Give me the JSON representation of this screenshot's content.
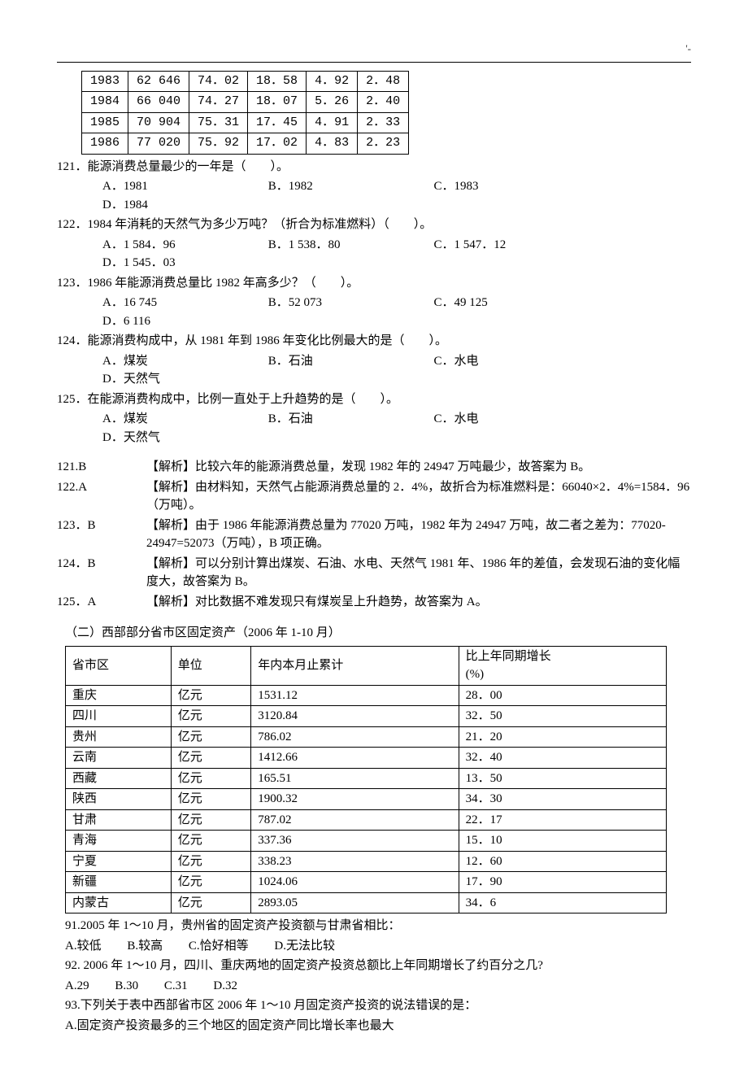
{
  "top_mark": "'-",
  "energy_table": {
    "rows": [
      [
        "1983",
        "62 646",
        "74．02",
        "18．58",
        "4．92",
        "2．48"
      ],
      [
        "1984",
        "66 040",
        "74．27",
        "18．07",
        "5．26",
        "2．40"
      ],
      [
        "1985",
        "70 904",
        "75．31",
        "17．45",
        "4．91",
        "2．33"
      ],
      [
        "1986",
        "77 020",
        "75．92",
        "17．02",
        "4．83",
        "2．23"
      ]
    ]
  },
  "q121": {
    "text": "121．能源消费总量最少的一年是（　　）。",
    "a": "A．1981",
    "b": "B．1982",
    "c": "C．1983",
    "d": "D．1984"
  },
  "q122": {
    "text": "122．1984 年消耗的天然气为多少万吨？（折合为标准燃料）（　　）。",
    "a": "A．1 584．96",
    "b": "B．1 538．80",
    "c": "C．1 547．12",
    "d": "D．1 545．03"
  },
  "q123": {
    "text": "123．1986 年能源消费总量比 1982 年高多少？（　　）。",
    "a": "A．16 745",
    "b": "B．52 073",
    "c": "C．49 125",
    "d": "D．6 116"
  },
  "q124": {
    "text": "124．能源消费构成中，从 1981 年到 1986 年变化比例最大的是（　　）。",
    "a": "A．煤炭",
    "b": "B．石油",
    "c": "C．水电",
    "d": "D．天然气"
  },
  "q125": {
    "text": "125．在能源消费构成中，比例一直处于上升趋势的是（　　）。",
    "a": "A．煤炭",
    "b": "B．石油",
    "c": "C．水电",
    "d": "D．天然气"
  },
  "expl": {
    "e121": {
      "key": "121.B",
      "text": "【解析】比较六年的能源消费总量，发现 1982 年的 24947 万吨最少，故答案为 B。"
    },
    "e122": {
      "key": "122.A",
      "text": "【解析】由材料知，天然气占能源消费总量的 2．4%，故折合为标准燃料是：66040×2．4%=1584．96（万吨）。"
    },
    "e123": {
      "key": "123．B",
      "text": "【解析】由于 1986 年能源消费总量为 77020 万吨，1982 年为 24947 万吨，故二者之差为：77020-24947=52073（万吨），B 项正确。"
    },
    "e124": {
      "key": "124．B",
      "text": "【解析】可以分别计算出煤炭、石油、水电、天然气 1981 年、1986 年的差值，会发现石油的变化幅度大，故答案为 B。"
    },
    "e125": {
      "key": "125．A",
      "text": "【解析】对比数据不难发现只有煤炭呈上升趋势，故答案为 A。"
    }
  },
  "section2_title": "（二）西部部分省市区固定资产（2006 年 1-10 月）",
  "asset_table": {
    "headers": [
      "省市区",
      "单位",
      "年内本月止累计",
      "比上年同期增长(%)"
    ],
    "rows": [
      [
        "重庆",
        "亿元",
        "1531.12",
        "28．00"
      ],
      [
        "四川",
        "亿元",
        "3120.84",
        "32．50"
      ],
      [
        "贵州",
        "亿元",
        "786.02",
        "21．20"
      ],
      [
        "云南",
        "亿元",
        "1412.66",
        "32．40"
      ],
      [
        "西藏",
        "亿元",
        "165.51",
        "13．50"
      ],
      [
        "陕西",
        "亿元",
        "1900.32",
        "34．30"
      ],
      [
        "甘肃",
        "亿元",
        "787.02",
        "22．17"
      ],
      [
        "青海",
        "亿元",
        "337.36",
        "15．10"
      ],
      [
        "宁夏",
        "亿元",
        "338.23",
        "12．60"
      ],
      [
        "新疆",
        "亿元",
        "1024.06",
        "17．90"
      ],
      [
        "内蒙古",
        "亿元",
        "2893.05",
        "34．6"
      ]
    ]
  },
  "q91": {
    "text": "91.2005 年 1～10 月，贵州省的固定资产投资额与甘肃省相比：",
    "a": "A.较低",
    "b": "B.较高",
    "c": "C.恰好相等",
    "d": "D.无法比较"
  },
  "q92": {
    "text": "92. 2006 年 1～10 月，四川、重庆两地的固定资产投资总额比上年同期增长了约百分之几?",
    "a": "A.29",
    "b": "B.30",
    "c": "C.31",
    "d": "D.32"
  },
  "q93": {
    "text": "93.下列关于表中西部省市区 2006 年 1～10 月固定资产投资的说法错误的是：",
    "optA": "A.固定资产投资最多的三个地区的固定资产同比增长率也最大"
  }
}
